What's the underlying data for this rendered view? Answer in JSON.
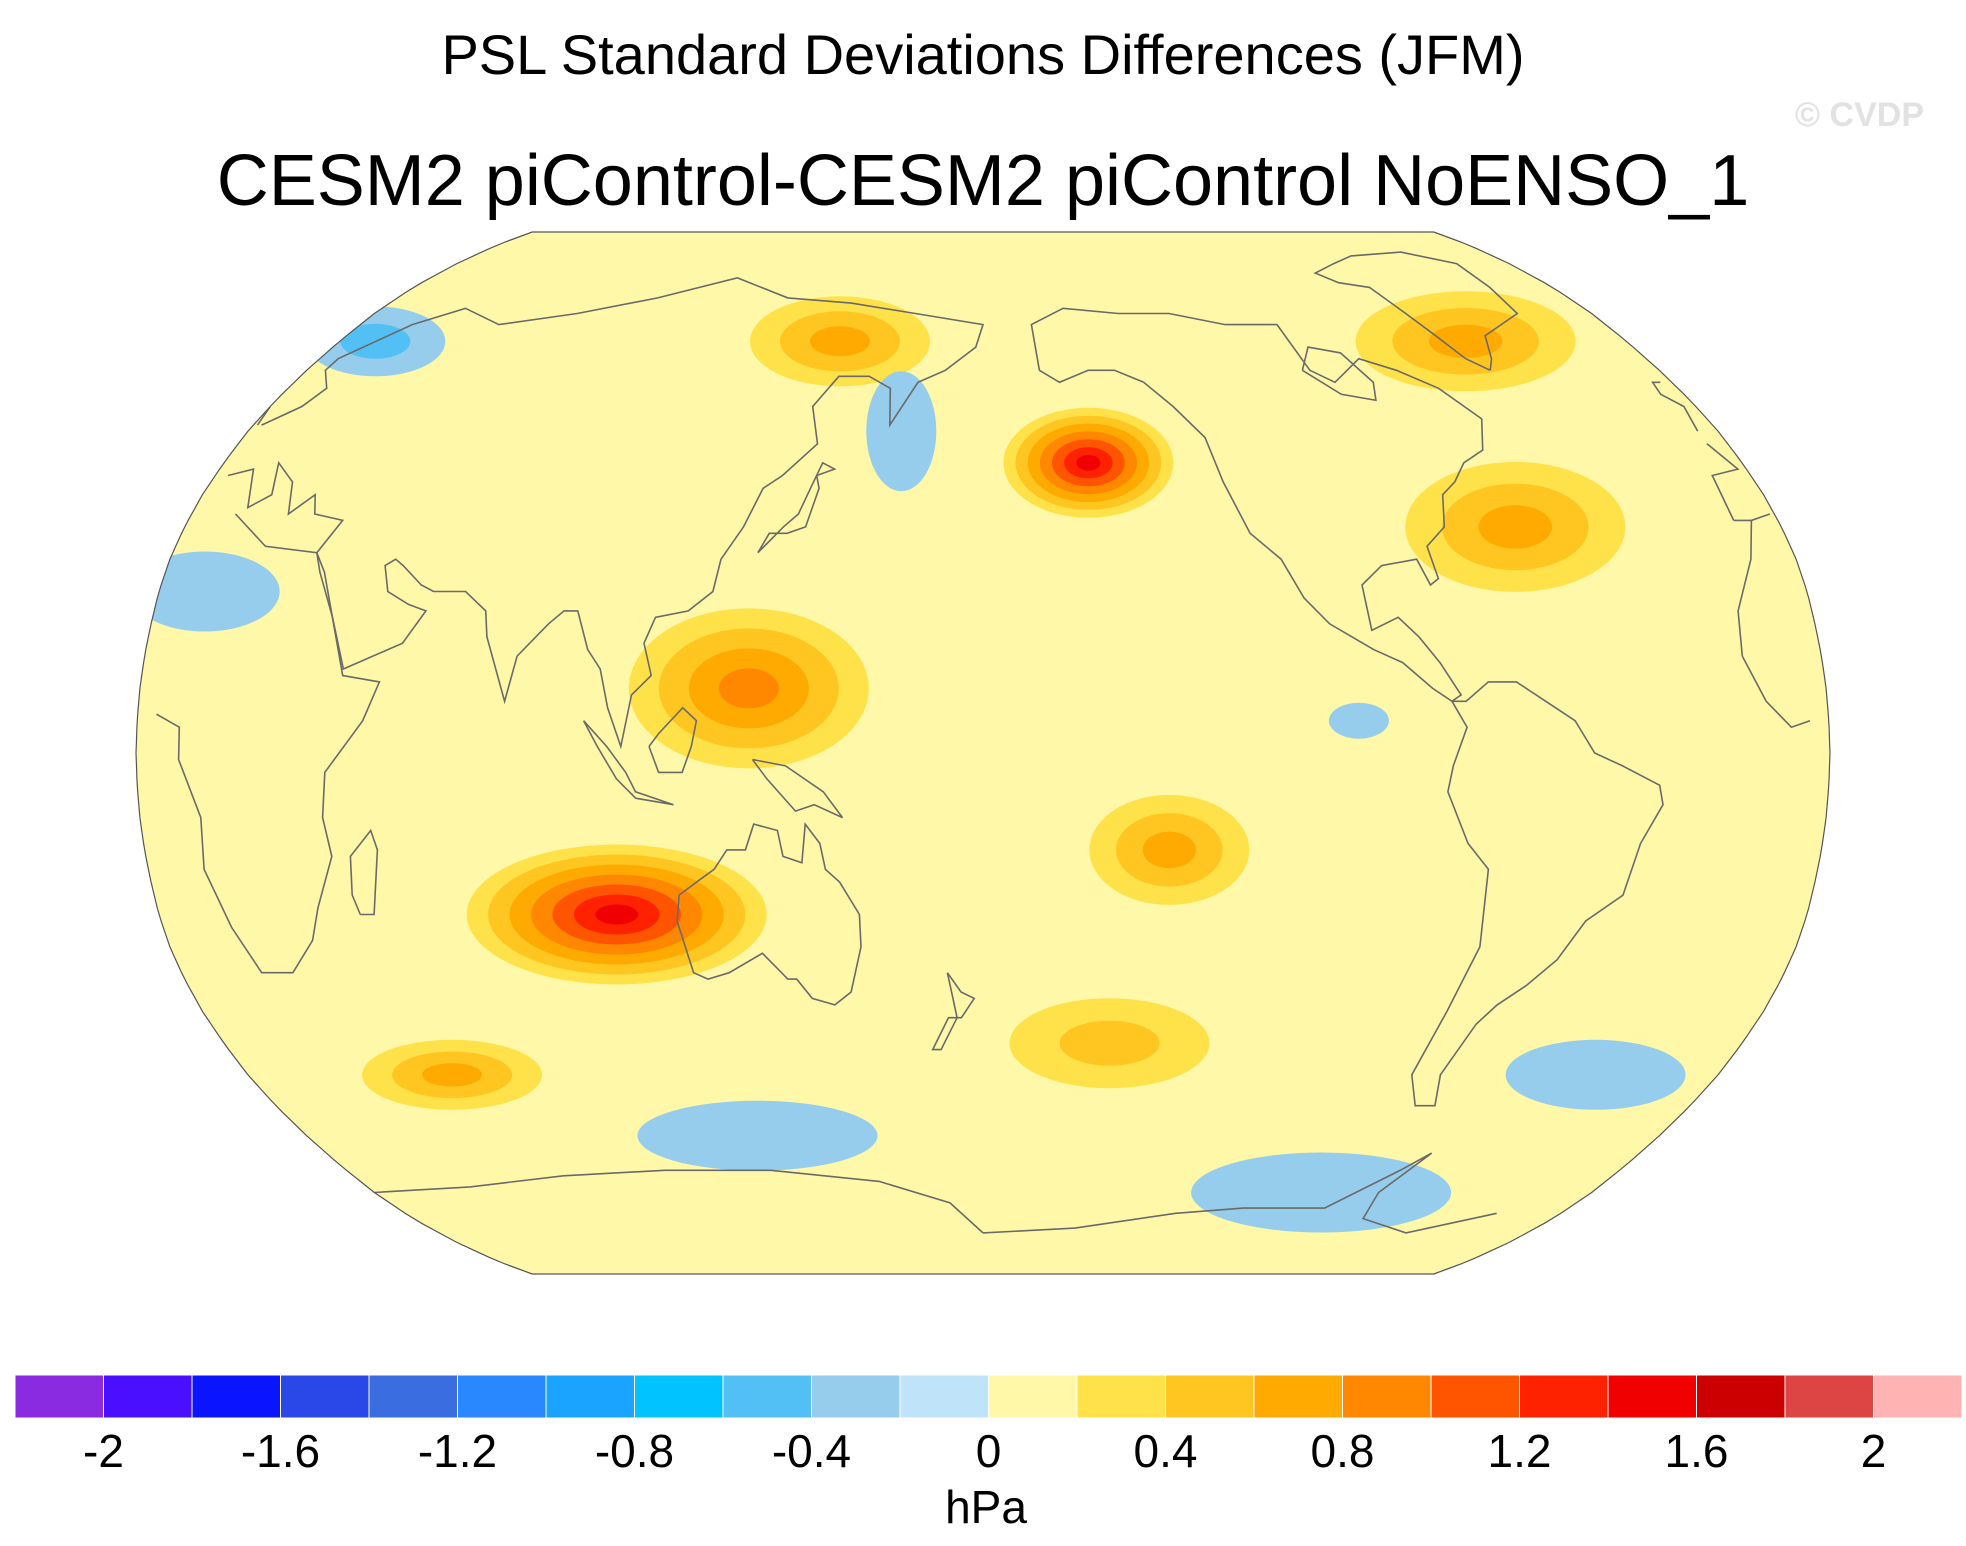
{
  "title": "PSL Standard Deviations Differences (JFM)",
  "subtitle": "CESM2 piControl-CESM2 piControl NoENSO_1",
  "watermark": "© CVDP",
  "colorbar": {
    "units": "hPa",
    "levels": [
      -2.2,
      -2.0,
      -1.8,
      -1.6,
      -1.4,
      -1.2,
      -1.0,
      -0.8,
      -0.6,
      -0.4,
      -0.2,
      0,
      0.2,
      0.4,
      0.6,
      0.8,
      1.0,
      1.2,
      1.4,
      1.6,
      1.8,
      2.0,
      2.2
    ],
    "colors": [
      "#8a2be2",
      "#4b0fff",
      "#0a14ff",
      "#2a48e8",
      "#3a6de0",
      "#2a88ff",
      "#1aa4ff",
      "#00c3ff",
      "#52c0f5",
      "#96cdec",
      "#bfe3f8",
      "#fff8a8",
      "#ffe24a",
      "#ffc622",
      "#ffaa00",
      "#ff8800",
      "#ff5500",
      "#ff2200",
      "#f00000",
      "#cc0000",
      "#dd4444",
      "#ffb3b3"
    ],
    "tick_values": [
      -2,
      -1.6,
      -1.2,
      -0.8,
      -0.4,
      0,
      0.4,
      0.8,
      1.2,
      1.6,
      2
    ],
    "tick_labels": [
      "-2",
      "-1.6",
      "-1.2",
      "-0.8",
      "-0.4",
      "0",
      "0.4",
      "0.8",
      "1.2",
      "1.6",
      "2"
    ]
  },
  "map": {
    "projection": "robinson",
    "central_longitude": 180,
    "background_value_hpa": 0.1,
    "features": [
      {
        "name": "north-pacific-max",
        "lon": -155,
        "lat": 45,
        "value": 1.4
      },
      {
        "name": "australia-indian-ocean-max",
        "lon": 100,
        "lat": -25,
        "value": 1.4
      },
      {
        "name": "west-pacific-maritime-continent",
        "lon": 130,
        "lat": 10,
        "value": 0.8
      },
      {
        "name": "north-atlantic-max",
        "lon": -60,
        "lat": 35,
        "value": 0.7
      },
      {
        "name": "greenland-max",
        "lon": -45,
        "lat": 65,
        "value": 0.5
      },
      {
        "name": "east-siberia-max",
        "lon": 140,
        "lat": 65,
        "value": 0.5
      },
      {
        "name": "south-pacific-max",
        "lon": -150,
        "lat": -45,
        "value": 0.4
      },
      {
        "name": "central-pacific-max",
        "lon": -140,
        "lat": -15,
        "value": 0.5
      },
      {
        "name": "south-indian-ocean-max",
        "lon": 50,
        "lat": -50,
        "value": 0.5
      },
      {
        "name": "kamchatka-min",
        "lon": 160,
        "lat": 50,
        "value": -0.3
      },
      {
        "name": "north-atlantic-east-min",
        "lon": 10,
        "lat": 65,
        "value": -0.4
      },
      {
        "name": "east-atlantic-min",
        "lon": 10,
        "lat": 25,
        "value": -0.2
      },
      {
        "name": "east-pacific-min",
        "lon": -100,
        "lat": 5,
        "value": -0.2
      },
      {
        "name": "south-atlantic-min",
        "lon": -30,
        "lat": -50,
        "value": -0.3
      },
      {
        "name": "southern-ocean-pacific-min",
        "lon": -80,
        "lat": -70,
        "value": -0.3
      },
      {
        "name": "southern-ocean-indian-min",
        "lon": 120,
        "lat": -60,
        "value": -0.3
      }
    ]
  }
}
